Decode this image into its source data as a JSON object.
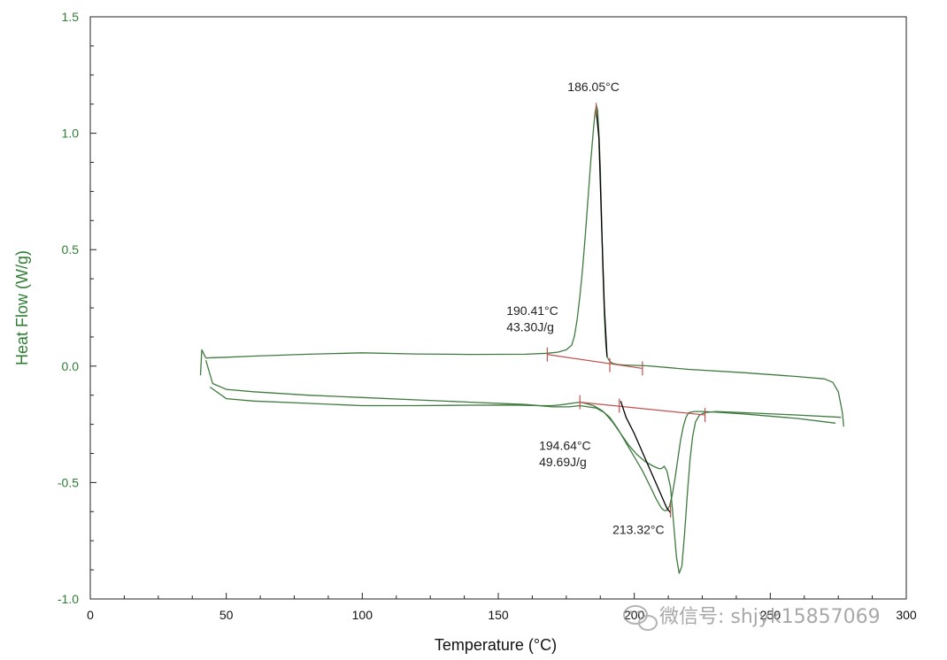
{
  "chart_data": {
    "type": "line",
    "title": "",
    "xlabel": "Temperature (°C)",
    "ylabel": "Heat Flow (W/g)",
    "xlim": [
      0,
      300
    ],
    "ylim": [
      -1.0,
      1.5
    ],
    "grid": false,
    "x_ticks": [
      "0",
      "50",
      "100",
      "150",
      "200",
      "250",
      "300"
    ],
    "y_ticks": [
      "1.5",
      "1.0",
      "0.5",
      "0.0",
      "-0.5",
      "-1.0"
    ],
    "colors": {
      "curve": "#3f7a3f",
      "integration": "#000000",
      "baseline": "#c0504d",
      "axis_label": "#2e7d32",
      "frame": "#222222"
    },
    "series": [
      {
        "role": "curve-a",
        "x": [
          40.5,
          41.0,
          42.5,
          45.0,
          50,
          60,
          80,
          100,
          120,
          140,
          160,
          168,
          172,
          175,
          177,
          178,
          179,
          180,
          181,
          182,
          183,
          184,
          185,
          185.5,
          186.05,
          186.5,
          187,
          187.5,
          188,
          188.5,
          189,
          189.5,
          190,
          191,
          192,
          194,
          196,
          200,
          205,
          220,
          240,
          260,
          270,
          273,
          275,
          276.5,
          277
        ],
        "y": [
          -0.04,
          0.07,
          0.035,
          0.036,
          0.038,
          0.043,
          0.051,
          0.057,
          0.052,
          0.05,
          0.051,
          0.055,
          0.06,
          0.07,
          0.09,
          0.13,
          0.2,
          0.3,
          0.42,
          0.56,
          0.72,
          0.88,
          1.02,
          1.08,
          1.12,
          1.1,
          1.0,
          0.85,
          0.62,
          0.4,
          0.22,
          0.1,
          0.04,
          0.02,
          0.012,
          0.007,
          0.005,
          0.003,
          0.001,
          -0.014,
          -0.028,
          -0.045,
          -0.055,
          -0.07,
          -0.11,
          -0.2,
          -0.26
        ]
      },
      {
        "role": "curve-b",
        "x": [
          42.5,
          45,
          50,
          60,
          80,
          100,
          120,
          140,
          160,
          170,
          176,
          180,
          183,
          186,
          189,
          192,
          195,
          198,
          201,
          204,
          207,
          209,
          210,
          211,
          212,
          213.32,
          214.5,
          215.5,
          216.5,
          217.5,
          218.5,
          219.5,
          220.5,
          221.5,
          222.5,
          224,
          226,
          230,
          240,
          260,
          276
        ],
        "y": [
          0.025,
          -0.075,
          -0.1,
          -0.11,
          -0.125,
          -0.135,
          -0.145,
          -0.155,
          -0.165,
          -0.175,
          -0.175,
          -0.17,
          -0.175,
          -0.18,
          -0.2,
          -0.24,
          -0.29,
          -0.34,
          -0.38,
          -0.41,
          -0.43,
          -0.44,
          -0.44,
          -0.43,
          -0.45,
          -0.52,
          -0.68,
          -0.82,
          -0.89,
          -0.86,
          -0.72,
          -0.55,
          -0.4,
          -0.3,
          -0.24,
          -0.21,
          -0.2,
          -0.195,
          -0.2,
          -0.21,
          -0.22
        ]
      },
      {
        "role": "curve-c",
        "x": [
          44,
          50,
          60,
          80,
          100,
          120,
          140,
          155,
          165,
          170,
          174,
          178,
          180,
          182,
          185,
          188,
          191,
          194,
          197,
          200,
          203,
          206,
          208,
          210,
          211,
          212,
          213,
          214,
          215,
          216,
          217,
          218,
          219,
          220,
          222,
          225,
          230,
          240,
          260,
          274
        ],
        "y": [
          -0.09,
          -0.14,
          -0.15,
          -0.16,
          -0.17,
          -0.17,
          -0.168,
          -0.167,
          -0.17,
          -0.17,
          -0.165,
          -0.158,
          -0.155,
          -0.16,
          -0.17,
          -0.19,
          -0.22,
          -0.27,
          -0.33,
          -0.39,
          -0.45,
          -0.52,
          -0.57,
          -0.61,
          -0.62,
          -0.62,
          -0.6,
          -0.55,
          -0.48,
          -0.4,
          -0.32,
          -0.26,
          -0.22,
          -0.2,
          -0.195,
          -0.195,
          -0.198,
          -0.205,
          -0.225,
          -0.245
        ]
      }
    ],
    "integration_marks": [
      {
        "x": [
          186.0,
          187.0,
          188.0,
          189.0,
          190.0
        ],
        "y": [
          1.1,
          0.98,
          0.6,
          0.25,
          0.04
        ]
      },
      {
        "x": [
          195.0,
          197.0,
          200.0,
          203.0,
          206.0,
          209.0,
          212.0,
          213.32
        ],
        "y": [
          -0.15,
          -0.22,
          -0.29,
          -0.37,
          -0.45,
          -0.53,
          -0.61,
          -0.63
        ]
      }
    ],
    "baselines": [
      {
        "x": [
          168.0,
          203.0
        ],
        "y": [
          0.05,
          -0.01
        ]
      },
      {
        "x": [
          180.0,
          226.0
        ],
        "y": [
          -0.155,
          -0.21
        ]
      }
    ],
    "limit_ticks": [
      {
        "x": 168.0,
        "y": 0.05
      },
      {
        "x": 191.0,
        "y": 0.004
      },
      {
        "x": 203.0,
        "y": -0.01
      },
      {
        "x": 180.0,
        "y": -0.155
      },
      {
        "x": 194.5,
        "y": -0.17
      },
      {
        "x": 213.32,
        "y": -0.62
      },
      {
        "x": 226.0,
        "y": -0.21
      },
      {
        "x": 186.0,
        "y": 1.1
      }
    ],
    "annotations": [
      {
        "text": "186.05°C",
        "x": 185.0,
        "y": 1.18,
        "anchor": "middle"
      },
      {
        "text": "190.41°C",
        "x": 153.0,
        "y": 0.22,
        "anchor": "start"
      },
      {
        "text": "43.30J/g",
        "x": 153.0,
        "y": 0.15,
        "anchor": "start"
      },
      {
        "text": "194.64°C",
        "x": 165.0,
        "y": -0.36,
        "anchor": "start"
      },
      {
        "text": "49.69J/g",
        "x": 165.0,
        "y": -0.43,
        "anchor": "start"
      },
      {
        "text": "213.32°C",
        "x": 192.0,
        "y": -0.72,
        "anchor": "start"
      }
    ]
  },
  "watermark": {
    "icon": "wechat-icon",
    "text": "微信号: shjyk15857069"
  }
}
